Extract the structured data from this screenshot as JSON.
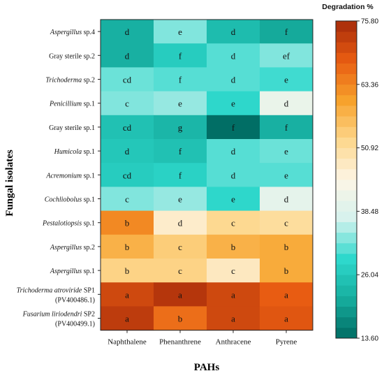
{
  "chart_data": {
    "type": "heatmap",
    "xlabel": "PAHs",
    "ylabel": "Fungal isolates",
    "columns": [
      "Naphthalene",
      "Phenanthrene",
      "Anthracene",
      "Pyrene"
    ],
    "rows": [
      {
        "label": [
          {
            "t": "Aspergillus",
            "i": true
          },
          {
            "t": " sp.4",
            "i": false
          }
        ],
        "label2": null
      },
      {
        "label": [
          {
            "t": "Gray sterile  sp.2",
            "i": false
          }
        ],
        "label2": null
      },
      {
        "label": [
          {
            "t": "Trichoderma",
            "i": true
          },
          {
            "t": " sp.2",
            "i": false
          }
        ],
        "label2": null
      },
      {
        "label": [
          {
            "t": "Penicillium",
            "i": true
          },
          {
            "t": " sp.1",
            "i": false
          }
        ],
        "label2": null
      },
      {
        "label": [
          {
            "t": "Gray sterile  sp.1",
            "i": false
          }
        ],
        "label2": null
      },
      {
        "label": [
          {
            "t": "Humicola",
            "i": true
          },
          {
            "t": " sp.1",
            "i": false
          }
        ],
        "label2": null
      },
      {
        "label": [
          {
            "t": "Acremonium",
            "i": true
          },
          {
            "t": " sp.1",
            "i": false
          }
        ],
        "label2": null
      },
      {
        "label": [
          {
            "t": "Cochliobolus",
            "i": true
          },
          {
            "t": " sp.1",
            "i": false
          }
        ],
        "label2": null
      },
      {
        "label": [
          {
            "t": "Pestalotiopsis",
            "i": true
          },
          {
            "t": " sp.1",
            "i": false
          }
        ],
        "label2": null
      },
      {
        "label": [
          {
            "t": "Aspergillus",
            "i": true
          },
          {
            "t": " sp.2",
            "i": false
          }
        ],
        "label2": null
      },
      {
        "label": [
          {
            "t": "Aspergillus",
            "i": true
          },
          {
            "t": " sp.1",
            "i": false
          }
        ],
        "label2": null
      },
      {
        "label": [
          {
            "t": "Trichoderma atroviride",
            "i": true
          },
          {
            "t": " SP1",
            "i": false
          }
        ],
        "label2": "(PV400486.1)"
      },
      {
        "label": [
          {
            "t": "Fusarium liriodendri",
            "i": true
          },
          {
            "t": " SP2",
            "i": false
          }
        ],
        "label2": "(PV400499.1)"
      }
    ],
    "values": [
      [
        22,
        33,
        24,
        21
      ],
      [
        22,
        27,
        31,
        33
      ],
      [
        32,
        31,
        31,
        30
      ],
      [
        33,
        34,
        29,
        41
      ],
      [
        25,
        23,
        14,
        22
      ],
      [
        26,
        25,
        31,
        32
      ],
      [
        27,
        28,
        31,
        31
      ],
      [
        33,
        34,
        29,
        40
      ],
      [
        63,
        47,
        52,
        51
      ],
      [
        58,
        54,
        58,
        59
      ],
      [
        53,
        53,
        48,
        59
      ],
      [
        71,
        74,
        71,
        68
      ],
      [
        73,
        66,
        71,
        69
      ]
    ],
    "letters": [
      [
        "d",
        "e",
        "d",
        "f"
      ],
      [
        "d",
        "f",
        "d",
        "ef"
      ],
      [
        "cd",
        "f",
        "d",
        "e"
      ],
      [
        "c",
        "e",
        "e",
        "d"
      ],
      [
        "cd",
        "g",
        "f",
        "f"
      ],
      [
        "d",
        "f",
        "d",
        "e"
      ],
      [
        "cd",
        "f",
        "d",
        "e"
      ],
      [
        "c",
        "e",
        "e",
        "d"
      ],
      [
        "b",
        "d",
        "c",
        "c"
      ],
      [
        "b",
        "c",
        "b",
        "b"
      ],
      [
        "b",
        "c",
        "c",
        "b"
      ],
      [
        "a",
        "a",
        "a",
        "a"
      ],
      [
        "a",
        "b",
        "a",
        "a"
      ]
    ],
    "colorbar": {
      "title": "Degradation %",
      "min": 13.6,
      "max": 75.8,
      "ticks": [
        "75.80",
        "63.36",
        "50.92",
        "38.48",
        "26.04",
        "13.60"
      ],
      "stops": [
        "#006b62",
        "#16ad9e",
        "#2ed8cc",
        "#d5f2ee",
        "#fdf5e6",
        "#fdd78c",
        "#f7a22c",
        "#e85c12",
        "#a52a0a"
      ]
    }
  }
}
